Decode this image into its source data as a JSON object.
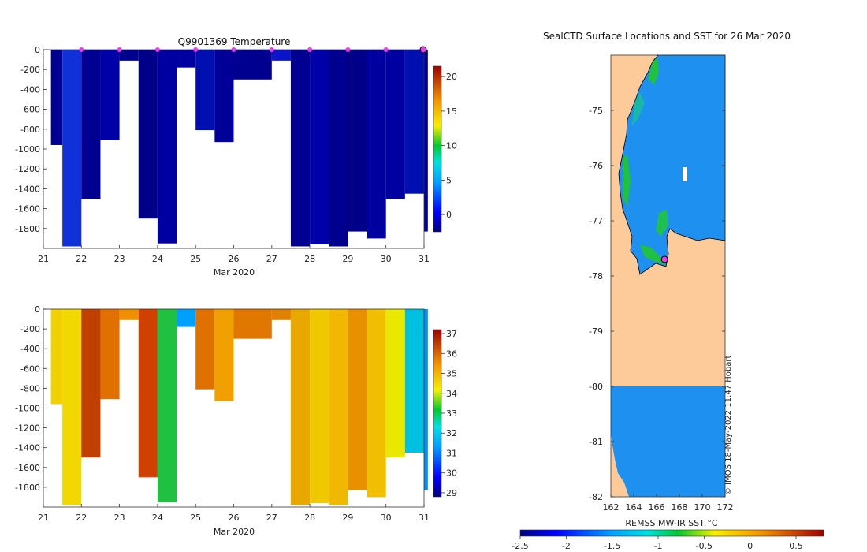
{
  "chart_data": [
    {
      "type": "heatmap",
      "title": "Q9901369  Temperature",
      "xlabel": "Mar 2020",
      "x_ticks": [
        "21",
        "22",
        "23",
        "24",
        "25",
        "26",
        "27",
        "28",
        "29",
        "30",
        "31"
      ],
      "y_ticks": [
        "0",
        "-200",
        "-400",
        "-600",
        "-800",
        "-1000",
        "-1200",
        "-1400",
        "-1600",
        "-1800"
      ],
      "ylim": [
        -2000,
        0
      ],
      "xlim": [
        21,
        31
      ],
      "colorbar_ticks": [
        "20",
        "15",
        "10",
        "5",
        "0"
      ],
      "colorbar_range": [
        -2.5,
        21.5
      ],
      "profile_days": [
        21.2,
        21.5,
        22.0,
        22.5,
        23.0,
        23.5,
        24.0,
        24.5,
        25.0,
        25.5,
        26.0,
        27.0,
        27.5,
        28.0,
        28.5,
        29.0,
        29.5,
        30.0,
        30.5,
        31.0
      ],
      "profile_depths": [
        960,
        1980,
        1500,
        910,
        110,
        1700,
        1950,
        180,
        810,
        930,
        300,
        110,
        1980,
        1960,
        1980,
        1830,
        1900,
        1500,
        1450,
        1830
      ],
      "surface_markers": [
        22.0,
        23.0,
        24.0,
        25.0,
        26.0,
        27.0,
        28.0,
        29.0,
        30.0
      ],
      "current_position_day": 31.0
    },
    {
      "type": "heatmap",
      "title": "",
      "xlabel": "Mar 2020",
      "x_ticks": [
        "21",
        "22",
        "23",
        "24",
        "25",
        "26",
        "27",
        "28",
        "29",
        "30",
        "31"
      ],
      "y_ticks": [
        "0",
        "-200",
        "-400",
        "-600",
        "-800",
        "-1000",
        "-1200",
        "-1400",
        "-1600",
        "-1800"
      ],
      "ylim": [
        -2000,
        0
      ],
      "xlim": [
        21,
        31
      ],
      "colorbar_ticks": [
        "37",
        "36",
        "35",
        "34",
        "33",
        "32",
        "31",
        "30",
        "29"
      ],
      "colorbar_range": [
        28.8,
        37.2
      ]
    },
    {
      "type": "heatmap",
      "title": "SealCTD Surface Locations and SST for 26 Mar 2020",
      "xlabel": "REMSS MW-IR SST °C",
      "x_ticks": [
        "162",
        "164",
        "166",
        "168",
        "170",
        "172"
      ],
      "y_ticks": [
        "-75",
        "-76",
        "-77",
        "-78",
        "-79",
        "-80",
        "-81",
        "-82"
      ],
      "xlim": [
        162,
        172
      ],
      "ylim": [
        -82,
        -74
      ],
      "colorbar_ticks": [
        "-2.5",
        "-2",
        "-1.5",
        "-1",
        "-0.5",
        "0",
        "0.5"
      ],
      "colorbar_range": [
        -2.5,
        0.8
      ],
      "seal_position": {
        "lon": 166.7,
        "lat": -77.7
      }
    }
  ],
  "credit": "© IMOS 18-May-2022 11:47 Hobart",
  "colors": {
    "land": "#fdcb9a",
    "ocean_sst": "#1e90f0",
    "marker": "#e83ee8",
    "axis": "#333333"
  }
}
